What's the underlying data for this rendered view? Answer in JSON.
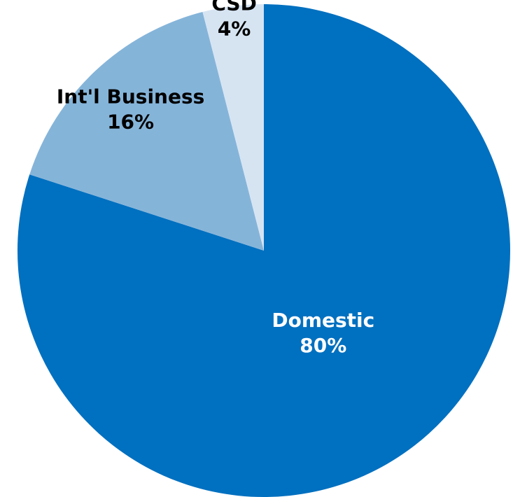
{
  "chart_data": {
    "type": "pie",
    "categories": [
      "Domestic",
      "Int'l Business",
      "CSD"
    ],
    "values": [
      80,
      16,
      4
    ],
    "labels": [
      {
        "name": "Domestic",
        "value_text": "80%"
      },
      {
        "name": "Int'l Business",
        "value_text": "16%"
      },
      {
        "name": "CSD",
        "value_text": "4%"
      }
    ],
    "colors": [
      "#0070C0",
      "#85B4D9",
      "#D6E4F2"
    ],
    "label_colors": [
      "#ffffff",
      "#000000",
      "#000000"
    ],
    "start_angle": "12 o'clock",
    "direction": "clockwise",
    "legend": "none",
    "title": ""
  }
}
